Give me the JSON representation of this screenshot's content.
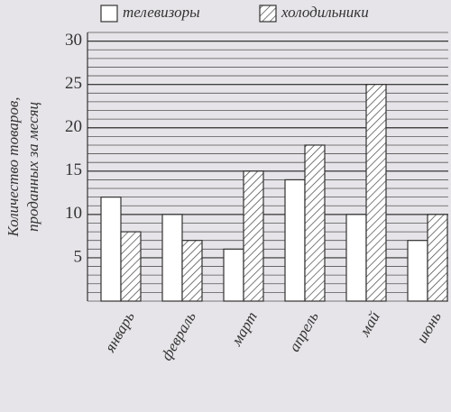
{
  "chart_data": {
    "type": "bar",
    "y_label_lines": [
      "Количество товаров,",
      "проданных за месяц"
    ],
    "categories": [
      "январь",
      "февраль",
      "март",
      "апрель",
      "май",
      "июнь"
    ],
    "series": [
      {
        "name": "телевизоры",
        "color": "#ffffff",
        "hatch": false,
        "values": [
          12,
          10,
          6,
          14,
          10,
          7
        ]
      },
      {
        "name": "холодильники",
        "color": "#ffffff",
        "hatch": true,
        "values": [
          8,
          7,
          15,
          18,
          25,
          10
        ]
      }
    ],
    "ylim": [
      0,
      31
    ],
    "yticks": [
      5,
      10,
      15,
      20,
      25,
      30
    ],
    "grid": true
  }
}
